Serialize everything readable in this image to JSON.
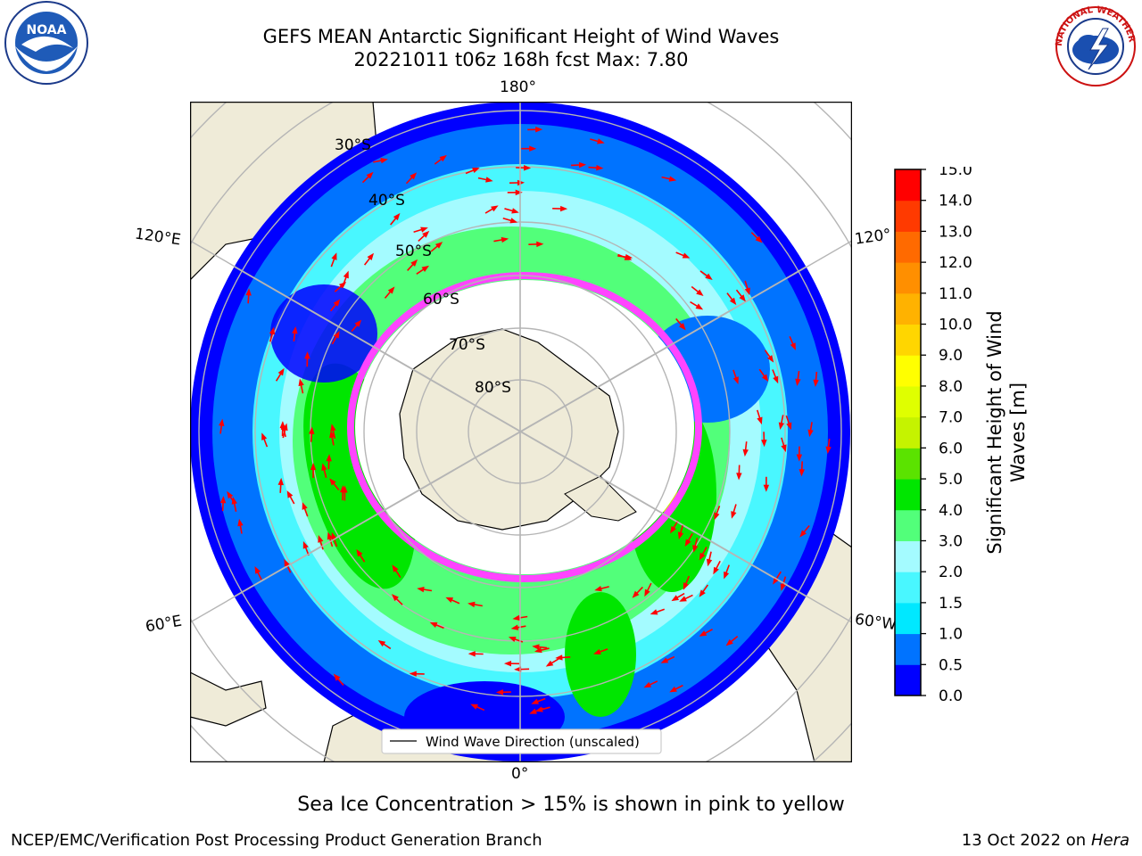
{
  "header": {
    "title_line1": "GEFS MEAN Antarctic Significant Height of Wind Waves",
    "title_line2": "20221011 t06z 168h fcst   Max: 7.80"
  },
  "logos": {
    "left": "NOAA",
    "right_ring": "NATIONAL WEATHER SERVICE"
  },
  "map": {
    "longitude_labels": {
      "top": "180°",
      "bottom": "0°",
      "left_upper": "120°E",
      "left_lower": "60°E",
      "right_upper": "120°",
      "right_lower": "60°W"
    },
    "latitude_labels": [
      "30°S",
      "40°S",
      "50°S",
      "60°S",
      "70°S",
      "80°S"
    ],
    "legend_label": "Wind Wave Direction (unscaled)",
    "colors": {
      "ocean_min": "#0000ff",
      "land": "#efebd8",
      "ice": "#ffffff",
      "graticule": "#b5b5b5",
      "arrow": "#ff0000"
    }
  },
  "colorbar": {
    "label": "Significant Height of Wind Waves [m]",
    "label_line1": "Significant Height of Wind",
    "label_line2": "Waves [m]",
    "ticks": [
      "0.0",
      "0.5",
      "1.0",
      "1.5",
      "2.0",
      "3.0",
      "4.0",
      "5.0",
      "6.0",
      "7.0",
      "8.0",
      "9.0",
      "10.0",
      "11.0",
      "12.0",
      "13.0",
      "14.0",
      "15.0"
    ],
    "colors": [
      "#0000ff",
      "#0073ff",
      "#00e8ff",
      "#49f7ff",
      "#a4fbff",
      "#52ff7a",
      "#00e600",
      "#5be300",
      "#c5f300",
      "#dfff00",
      "#ffff00",
      "#ffd600",
      "#ffb200",
      "#ff8f00",
      "#ff6a00",
      "#ff3a00",
      "#ff0000"
    ]
  },
  "footer": {
    "caption": "Sea Ice Concentration > 15% is shown in pink to yellow",
    "left": "NCEP/EMC/Verification Post Processing Product Generation Branch",
    "right_date": "13 Oct 2022 on ",
    "right_machine": "Hera"
  }
}
